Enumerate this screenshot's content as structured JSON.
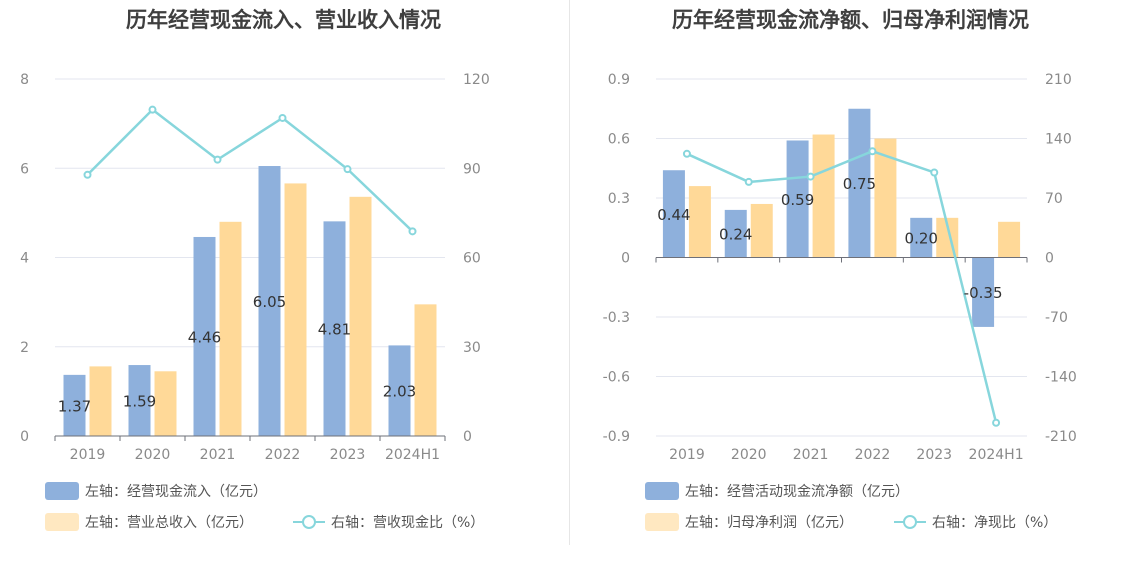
{
  "chart_data": [
    {
      "type": "bar",
      "title": "历年经营现金流入、营业收入情况",
      "categories": [
        "2019",
        "2020",
        "2021",
        "2022",
        "2023",
        "2024H1"
      ],
      "series": [
        {
          "name": "左轴：经营现金流入（亿元）",
          "type": "bar",
          "axis": "left",
          "color": "#8eb0dc",
          "values": [
            1.37,
            1.59,
            4.46,
            6.05,
            4.81,
            2.03
          ],
          "labels": [
            "1.37",
            "1.59",
            "4.46",
            "6.05",
            "4.81",
            "2.03"
          ]
        },
        {
          "name": "左轴：营业总收入（亿元）",
          "type": "bar",
          "axis": "left",
          "color": "#ffd998",
          "values": [
            1.56,
            1.45,
            4.8,
            5.66,
            5.36,
            2.95
          ]
        },
        {
          "name": "右轴：营收现金比（%）",
          "type": "line",
          "axis": "right",
          "color": "#87d6dc",
          "values": [
            87.8,
            109.7,
            92.9,
            106.9,
            89.7,
            68.8
          ]
        }
      ],
      "left_axis": {
        "min": 0,
        "max": 8,
        "ticks": [
          "0",
          "2",
          "4",
          "6",
          "8"
        ]
      },
      "right_axis": {
        "min": 0,
        "max": 120,
        "ticks": [
          "0",
          "30",
          "60",
          "90",
          "120"
        ]
      },
      "grid": true,
      "legend_position": "bottom-left"
    },
    {
      "type": "bar",
      "title": "历年经营现金流净额、归母净利润情况",
      "categories": [
        "2019",
        "2020",
        "2021",
        "2022",
        "2023",
        "2024H1"
      ],
      "series": [
        {
          "name": "左轴：经营活动现金流净额（亿元）",
          "type": "bar",
          "axis": "left",
          "color": "#8eb0dc",
          "values": [
            0.44,
            0.24,
            0.59,
            0.75,
            0.2,
            -0.35
          ],
          "labels": [
            "0.44",
            "0.24",
            "0.59",
            "0.75",
            "0.20",
            "-0.35"
          ]
        },
        {
          "name": "左轴：归母净利润（亿元）",
          "type": "bar",
          "axis": "left",
          "color": "#ffd998",
          "values": [
            0.36,
            0.27,
            0.62,
            0.6,
            0.2,
            0.18
          ]
        },
        {
          "name": "右轴：净现比（%）",
          "type": "line",
          "axis": "right",
          "color": "#87d6dc",
          "values": [
            122.0,
            88.9,
            95.2,
            125.0,
            100.0,
            -194.4
          ]
        }
      ],
      "left_axis": {
        "min": -0.9,
        "max": 0.9,
        "ticks": [
          "-0.9",
          "-0.6",
          "-0.3",
          "0",
          "0.3",
          "0.6",
          "0.9"
        ]
      },
      "right_axis": {
        "min": -210,
        "max": 210,
        "ticks": [
          "-210",
          "-140",
          "-70",
          "0",
          "70",
          "140",
          "210"
        ]
      },
      "grid": true,
      "legend_position": "bottom-left"
    }
  ]
}
